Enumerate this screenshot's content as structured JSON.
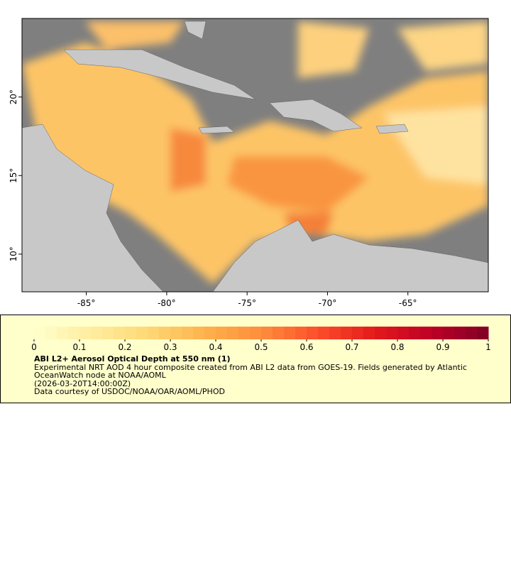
{
  "map": {
    "xlim": [
      -89,
      -60
    ],
    "ylim": [
      7.6,
      25
    ],
    "xticks": [
      {
        "value": -85,
        "label": "-85°"
      },
      {
        "value": -80,
        "label": "-80°"
      },
      {
        "value": -75,
        "label": "-75°"
      },
      {
        "value": -70,
        "label": "-70°"
      },
      {
        "value": -65,
        "label": "-65°"
      }
    ],
    "yticks": [
      {
        "value": 10,
        "label": "10°"
      },
      {
        "value": 15,
        "label": "15°"
      },
      {
        "value": 20,
        "label": "20°"
      }
    ]
  },
  "legend": {
    "colorbar": {
      "range": [
        0,
        1
      ],
      "ticks": [
        0,
        0.1,
        0.2,
        0.3,
        0.4,
        0.5,
        0.6,
        0.7,
        0.8,
        0.9,
        1
      ],
      "colors": [
        "#ffffcc",
        "#ffeda0",
        "#fed976",
        "#feb24c",
        "#fd8d3c",
        "#fc4e2a",
        "#e31a1c",
        "#bd0026",
        "#800026"
      ]
    },
    "title": "ABI L2+ Aerosol Optical Depth at 550 nm (1)",
    "description": "Experimental NRT AOD 4 hour composite created from ABI L2 data from GOES-19. Fields generated by Atlantic OceanWatch node at NOAA/AOML",
    "date": "(2026-03-20T14:00:00Z)",
    "credit": "Data courtesy of USDOC/NOAA/OAR/AOML/PHOD"
  }
}
